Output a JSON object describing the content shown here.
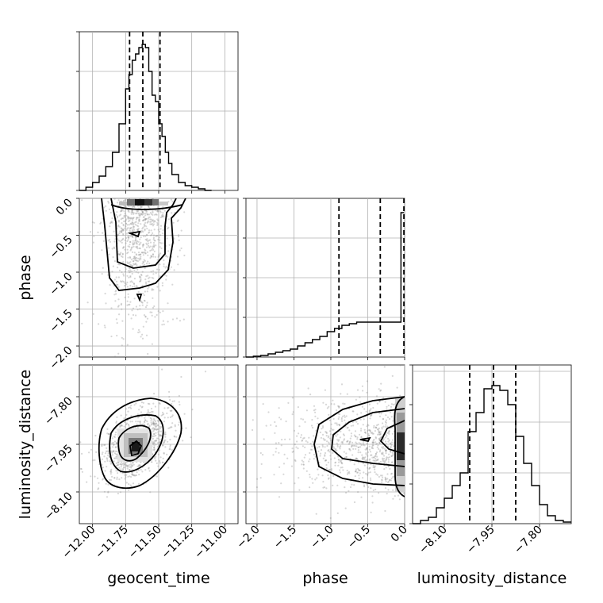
{
  "chart_data": {
    "type": "corner",
    "parameters": [
      "geocent_time",
      "phase",
      "luminosity_distance"
    ],
    "grid": true,
    "panels": [
      {
        "id": "hist-geocent_time",
        "type": "histogram",
        "param": "geocent_time",
        "xlim": [
          -12.1,
          -10.9
        ],
        "ylim": [
          0,
          1.0
        ],
        "xticks": [
          -12.0,
          -11.75,
          -11.5,
          -11.25,
          -11.0
        ],
        "quantiles": [
          -11.72,
          -11.62,
          -11.49
        ],
        "bins": [
          -12.1,
          -12.05,
          -12.0,
          -11.95,
          -11.9,
          -11.85,
          -11.8,
          -11.75,
          -11.725,
          -11.7,
          -11.675,
          -11.65,
          -11.625,
          -11.6,
          -11.575,
          -11.55,
          -11.525,
          -11.5,
          -11.475,
          -11.45,
          -11.425,
          -11.4,
          -11.35,
          -11.3,
          -11.25,
          -11.2,
          -11.15,
          -11.1
        ],
        "counts": [
          0.0,
          0.02,
          0.05,
          0.09,
          0.15,
          0.24,
          0.42,
          0.64,
          0.73,
          0.82,
          0.86,
          0.9,
          0.92,
          0.9,
          0.75,
          0.6,
          0.56,
          0.42,
          0.34,
          0.24,
          0.17,
          0.1,
          0.05,
          0.03,
          0.02,
          0.01,
          0.0
        ]
      },
      {
        "id": "hist-phase",
        "type": "histogram",
        "param": "phase",
        "xlim": [
          -2.15,
          0.0
        ],
        "ylim": [
          0,
          1.0
        ],
        "xticks": [
          -2.0,
          -1.5,
          -1.0,
          -0.5,
          0.0
        ],
        "xticklabels": [
          "−2.0",
          "−1.5",
          "−1.0",
          "−0.5",
          "0.0"
        ],
        "quantiles": [
          -0.89,
          -0.33,
          -0.01
        ],
        "bins": [
          -2.15,
          -2.05,
          -1.95,
          -1.85,
          -1.75,
          -1.65,
          -1.55,
          -1.45,
          -1.35,
          -1.25,
          -1.15,
          -1.05,
          -0.95,
          -0.85,
          -0.75,
          -0.65,
          -0.55,
          -0.45,
          -0.35,
          -0.25,
          -0.15,
          -0.05,
          -0.01
        ],
        "counts": [
          0.0,
          0.005,
          0.01,
          0.02,
          0.03,
          0.04,
          0.05,
          0.07,
          0.09,
          0.11,
          0.13,
          0.16,
          0.18,
          0.2,
          0.21,
          0.22,
          0.22,
          0.22,
          0.22,
          0.22,
          0.22,
          0.91
        ]
      },
      {
        "id": "hist-luminosity_distance",
        "type": "histogram",
        "param": "luminosity_distance",
        "xlim": [
          -8.2,
          -7.7
        ],
        "ylim": [
          0,
          1.0
        ],
        "xticks": [
          -8.1,
          -7.95,
          -7.8
        ],
        "quantiles": [
          -8.02,
          -7.945,
          -7.875
        ],
        "bins": [
          -8.2,
          -8.175,
          -8.15,
          -8.125,
          -8.1,
          -8.075,
          -8.05,
          -8.025,
          -8.0,
          -7.975,
          -7.95,
          -7.925,
          -7.9,
          -7.875,
          -7.85,
          -7.825,
          -7.8,
          -7.775,
          -7.75,
          -7.725,
          -7.7
        ],
        "counts": [
          0.0,
          0.02,
          0.04,
          0.1,
          0.16,
          0.24,
          0.32,
          0.58,
          0.7,
          0.85,
          0.87,
          0.84,
          0.75,
          0.55,
          0.38,
          0.24,
          0.12,
          0.05,
          0.02,
          0.01
        ]
      },
      {
        "id": "2d-geocent_time-phase",
        "type": "contour",
        "x": "geocent_time",
        "y": "phase",
        "xlim": [
          -12.1,
          -10.9
        ],
        "ylim": [
          -2.15,
          0.0
        ],
        "yticks": [
          0.0,
          -0.5,
          -1.0,
          -1.5,
          -2.0
        ],
        "yticklabels": [
          "0.0",
          "−0.5",
          "−1.0",
          "−1.5",
          "−2.0"
        ],
        "ylabel": "phase"
      },
      {
        "id": "2d-geocent_time-luminosity_distance",
        "type": "contour",
        "x": "geocent_time",
        "y": "luminosity_distance",
        "xlim": [
          -12.1,
          -10.9
        ],
        "ylim": [
          -8.2,
          -7.7
        ],
        "xticks": [
          -12.0,
          -11.75,
          -11.5,
          -11.25,
          -11.0
        ],
        "xticklabels": [
          "−12.00",
          "−11.75",
          "−11.50",
          "−11.25",
          "−11.00"
        ],
        "yticks": [
          -7.8,
          -7.95,
          -8.1
        ],
        "yticklabels": [
          "−7.80",
          "−7.95",
          "−8.10"
        ],
        "xlabel": "geocent_time",
        "ylabel": "luminosity_distance"
      },
      {
        "id": "2d-phase-luminosity_distance",
        "type": "contour",
        "x": "phase",
        "y": "luminosity_distance",
        "xlim": [
          -2.15,
          0.0
        ],
        "ylim": [
          -8.2,
          -7.7
        ],
        "xticks": [
          -2.0,
          -1.5,
          -1.0,
          -0.5,
          0.0
        ],
        "xticklabels": [
          "−2.0",
          "−1.5",
          "−1.0",
          "−0.5",
          "0.0"
        ],
        "xlabel": "phase"
      }
    ],
    "bottom_labels": {
      "hist-luminosity_distance_xticklabels": [
        "−8.10",
        "−7.95",
        "−7.80"
      ],
      "hist-luminosity_distance_xlabel": "luminosity_distance"
    }
  },
  "colors": {
    "ink": "#000000",
    "grid": "#b0b0b0",
    "scatter": "#8c8c8c"
  }
}
